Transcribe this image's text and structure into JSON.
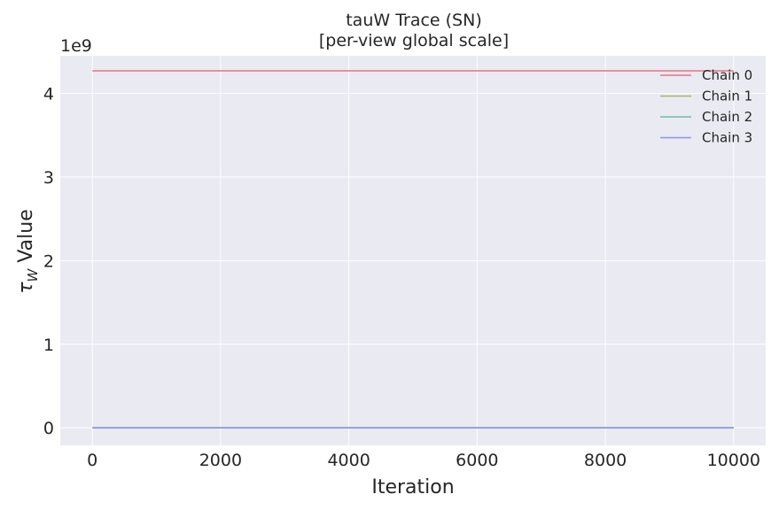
{
  "chart_data": {
    "type": "line",
    "title": "tauW Trace (SN)",
    "subtitle": "[per-view global scale]",
    "xlabel": "Iteration",
    "ylabel_symbol": "τ",
    "ylabel_subscript": "W",
    "ylabel_suffix": " Value",
    "y_multiplier_label": "1e9",
    "x_ticks": [
      0,
      2000,
      4000,
      6000,
      8000,
      10000
    ],
    "y_ticks": [
      0,
      1,
      2,
      3,
      4
    ],
    "xlim": [
      -500,
      10500
    ],
    "ylim_scaled": [
      -0.21,
      4.45
    ],
    "grid": true,
    "legend_position": "top-right",
    "series": [
      {
        "name": "Chain 0",
        "color": "#e8737f",
        "x": [
          0,
          10000
        ],
        "y_scaled": [
          4.27,
          4.27
        ]
      },
      {
        "name": "Chain 1",
        "color": "#a9b46a",
        "x": [
          0,
          10000
        ],
        "y_scaled": [
          0.0,
          0.0
        ]
      },
      {
        "name": "Chain 2",
        "color": "#6bbcb0",
        "x": [
          0,
          10000
        ],
        "y_scaled": [
          0.0,
          0.0
        ]
      },
      {
        "name": "Chain 3",
        "color": "#8e93e6",
        "x": [
          0,
          10000
        ],
        "y_scaled": [
          0.0,
          0.0
        ]
      }
    ]
  },
  "colors": {
    "plot_background": "#eaeaf2",
    "grid": "#ffffff"
  }
}
